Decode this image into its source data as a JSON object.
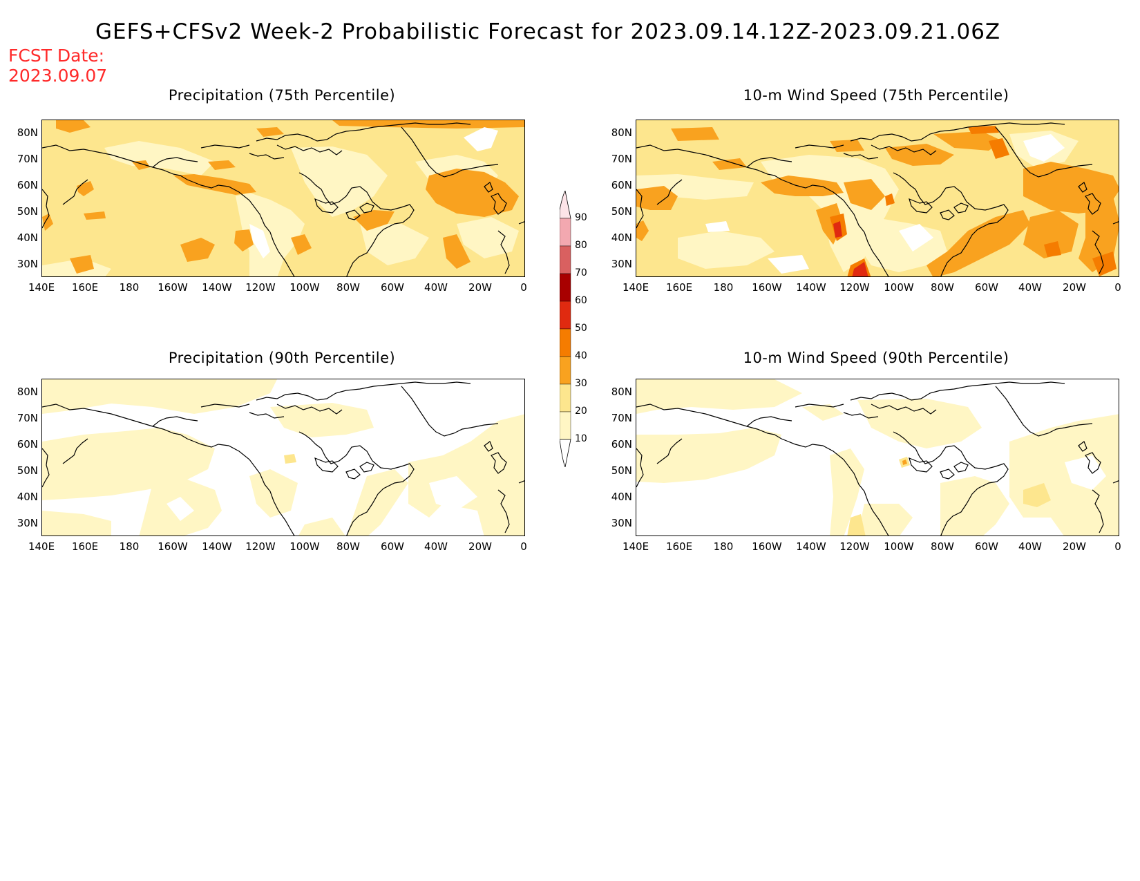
{
  "header": {
    "title": "GEFS+CFSv2 Week-2 Probabilistic Forecast for 2023.09.14.12Z-2023.09.21.06Z",
    "fcst_label": "FCST Date:",
    "fcst_date": "2023.09.07"
  },
  "panels": [
    {
      "title": "Precipitation (75th Percentile)",
      "level": "p75"
    },
    {
      "title": "10-m Wind Speed (75th Percentile)",
      "level": "w75"
    },
    {
      "title": "Precipitation (90th Percentile)",
      "level": "p90"
    },
    {
      "title": "10-m Wind Speed (90th Percentile)",
      "level": "w90"
    }
  ],
  "lat_ticks": [
    "80N",
    "70N",
    "60N",
    "50N",
    "40N",
    "30N"
  ],
  "lon_ticks": [
    "140E",
    "160E",
    "180",
    "160W",
    "140W",
    "120W",
    "100W",
    "80W",
    "60W",
    "40W",
    "20W",
    "0"
  ],
  "colorbar": {
    "levels": [
      "10",
      "20",
      "30",
      "40",
      "50",
      "60",
      "70",
      "80",
      "90"
    ],
    "colors": [
      "#fff6c4",
      "#fde68e",
      "#f9a21f",
      "#f57c00",
      "#e02a10",
      "#a80000",
      "#d96060",
      "#f3a8b0",
      "#fde4e8"
    ]
  },
  "palette": {
    "white": "#ffffff",
    "c10": "#fff6c4",
    "c20": "#fde68e",
    "c30": "#f9a21f",
    "c40": "#f57c00",
    "c50": "#e02a10",
    "fcst_red": "#ff2a2a"
  }
}
